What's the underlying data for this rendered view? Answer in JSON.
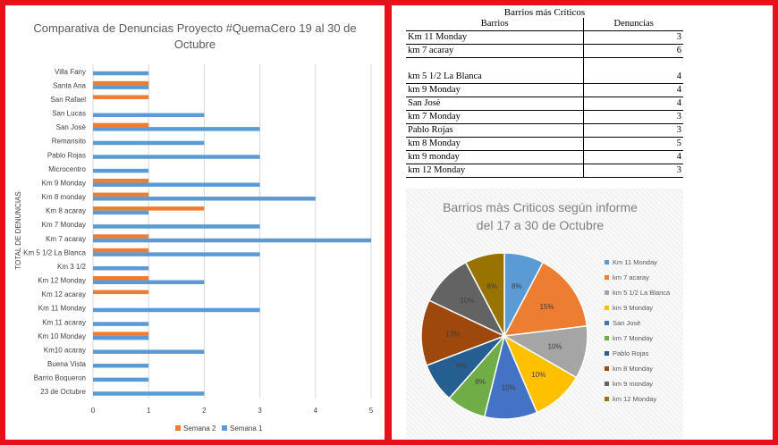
{
  "chart_data": [
    {
      "type": "bar",
      "orientation": "horizontal",
      "title": "Comparativa de Denuncias Proyecto #QuemaCero 19 al 30 de Octubre",
      "title_lines": [
        "Comparativa de Denuncias Proyecto #QuemaCero 19 al 30 de",
        "Octubre"
      ],
      "ylabel": "TOTAL DE DENUNCIAS",
      "xlabel": "",
      "xlim": [
        0,
        5
      ],
      "xticks": [
        "0",
        "1",
        "2",
        "3",
        "4",
        "5"
      ],
      "grid": true,
      "legend_position": "bottom",
      "categories": [
        "Villa Fany",
        "Santa Ana",
        "San Rafael",
        "San Lucas",
        "San Josè",
        "Remansito",
        "Pablo Rojas",
        "Microcentro",
        "Km 9 Monday",
        "Km 8 monday",
        "Km 8 acaray",
        "Km 7 Monday",
        "Km 7 acaray",
        "Km 5 1/2 La Blanca",
        "Km 3 1/2",
        "Km 12 Monday",
        "Km 12 acaray",
        "Km 11 Monday",
        "Km 11 acaray",
        "Km 10 Monday",
        "Km10 acaray",
        "Buena Vista",
        "Barrio Boqueron",
        "23 de Octubre"
      ],
      "series": [
        {
          "name": "Semana 2",
          "color": "#ed7d31",
          "values": [
            0,
            1,
            1,
            0,
            1,
            0,
            0,
            0,
            1,
            1,
            2,
            0,
            1,
            1,
            0,
            1,
            1,
            0,
            0,
            1,
            0,
            0,
            0,
            0
          ]
        },
        {
          "name": "Semana 1",
          "color": "#5b9bd5",
          "values": [
            1,
            1,
            0,
            2,
            3,
            2,
            3,
            1,
            3,
            4,
            1,
            3,
            5,
            3,
            1,
            2,
            0,
            3,
            1,
            1,
            2,
            1,
            1,
            2
          ]
        }
      ],
      "legend": [
        "Semana 2",
        "Semana 1"
      ]
    },
    {
      "type": "table",
      "title": "Barrios más Críticos",
      "columns": [
        "Barrios",
        "Denuncias"
      ],
      "rows": [
        {
          "barrio": "Km 11 Monday",
          "denuncias": "3"
        },
        {
          "barrio": "km 7 acaray",
          "denuncias": "6"
        },
        {
          "barrio": "km 5 1/2 La Blanca",
          "denuncias": "4"
        },
        {
          "barrio": "km 9 Monday",
          "denuncias": "4"
        },
        {
          "barrio": "San Josè",
          "denuncias": "4"
        },
        {
          "barrio": "km 7 Monday",
          "denuncias": "3"
        },
        {
          "barrio": "Pablo Rojas",
          "denuncias": "3"
        },
        {
          "barrio": "km 8 Monday",
          "denuncias": "5"
        },
        {
          "barrio": "km 9 monday",
          "denuncias": "4"
        },
        {
          "barrio": "km 12 Monday",
          "denuncias": "3"
        }
      ]
    },
    {
      "type": "pie",
      "title": "Barrios màs Criticos según informe del 17 a 30 de Octubre",
      "title_lines": [
        "Barrios màs Criticos según informe",
        "del 17 a 30 de Octubre"
      ],
      "legend_position": "right",
      "slices": [
        {
          "label": "Km 11 Monday",
          "value": 3,
          "pct": "8%",
          "color": "#5b9bd5"
        },
        {
          "label": "km 7 acaray",
          "value": 6,
          "pct": "15%",
          "color": "#ed7d31"
        },
        {
          "label": "km 5 1/2 La Blanca",
          "value": 4,
          "pct": "10%",
          "color": "#a5a5a5"
        },
        {
          "label": "km 9 Monday",
          "value": 4,
          "pct": "10%",
          "color": "#ffc000"
        },
        {
          "label": "San Josè",
          "value": 4,
          "pct": "10%",
          "color": "#4472c4"
        },
        {
          "label": "km 7 Monday",
          "value": 3,
          "pct": "8%",
          "color": "#70ad47"
        },
        {
          "label": "Pablo Rojas",
          "value": 3,
          "pct": "8%",
          "color": "#255e91"
        },
        {
          "label": "km 8 Monday",
          "value": 5,
          "pct": "13%",
          "color": "#9e480e"
        },
        {
          "label": "km 9 monday",
          "value": 4,
          "pct": "10%",
          "color": "#636363"
        },
        {
          "label": "km 12 Monday",
          "value": 3,
          "pct": "8%",
          "color": "#997300"
        }
      ]
    }
  ]
}
